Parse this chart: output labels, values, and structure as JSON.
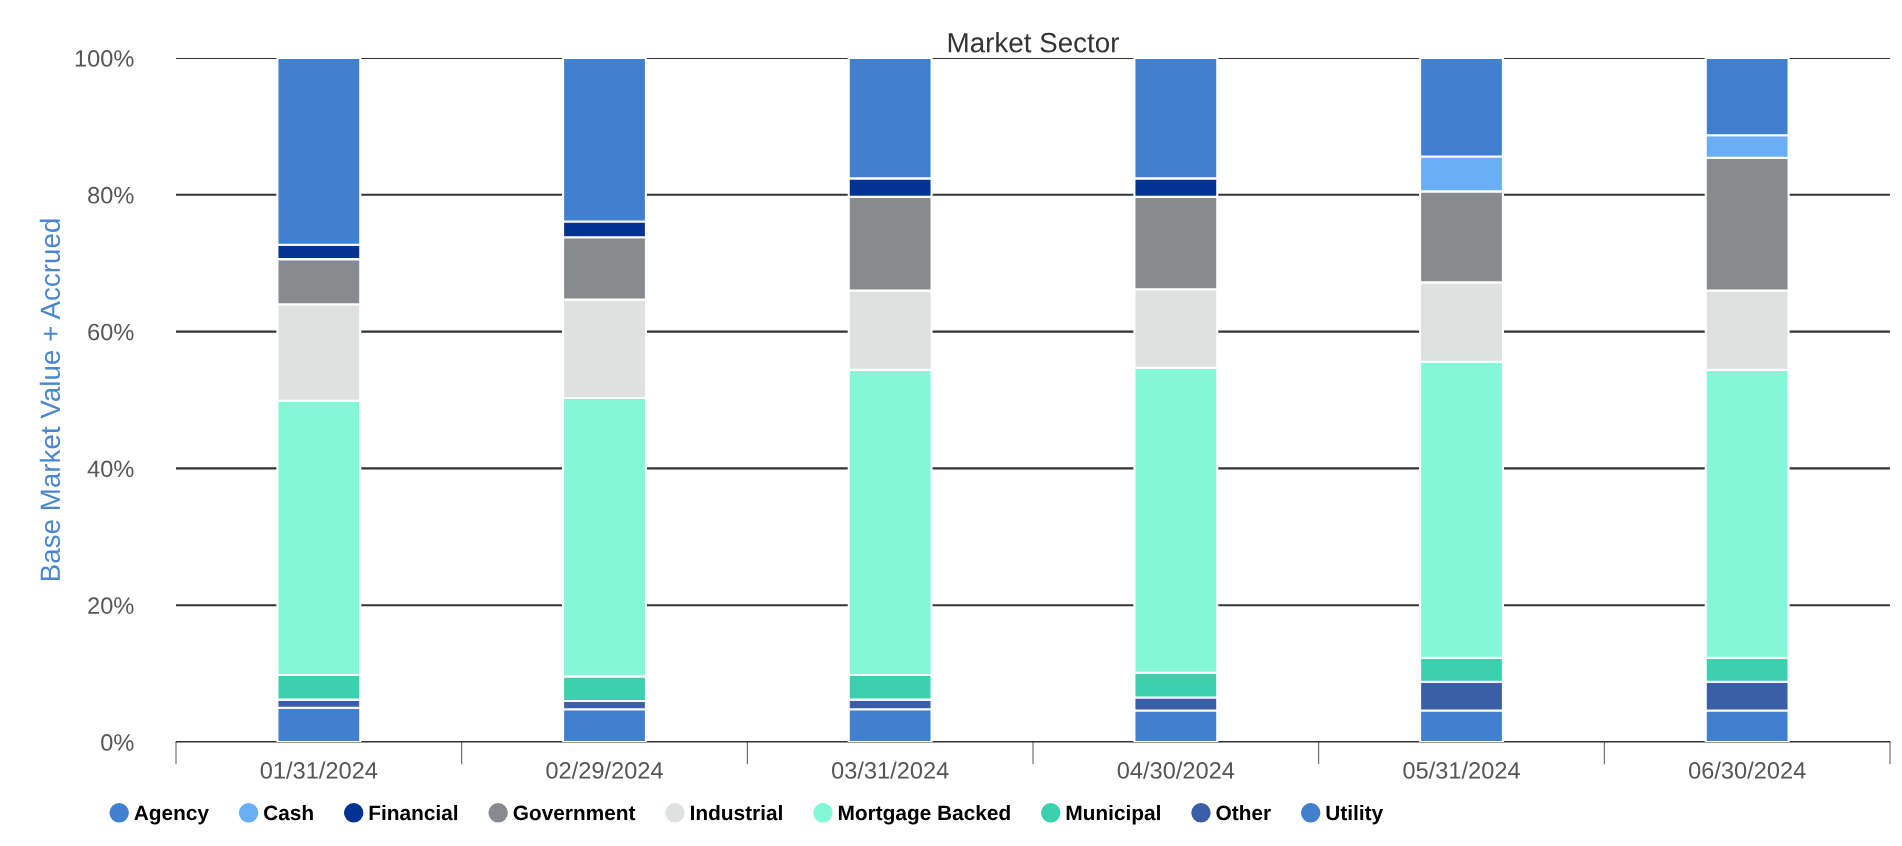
{
  "chart_data": {
    "type": "bar",
    "title": "Market Sector",
    "ylabel": "Base Market Value + Accrued",
    "stacked": true,
    "categories": [
      "01/31/2024",
      "02/29/2024",
      "03/31/2024",
      "04/30/2024",
      "05/31/2024",
      "06/30/2024"
    ],
    "series": [
      {
        "name": "Utility",
        "color": "#4080cf",
        "values": [
          5.0,
          4.8,
          4.8,
          4.6,
          4.6,
          4.6
        ]
      },
      {
        "name": "Other",
        "color": "#3a5ea8",
        "values": [
          1.2,
          1.2,
          1.4,
          1.9,
          4.2,
          4.2
        ]
      },
      {
        "name": "Municipal",
        "color": "#3bd1ae",
        "values": [
          3.6,
          3.6,
          3.6,
          3.6,
          3.5,
          3.5
        ]
      },
      {
        "name": "Mortgage Backed",
        "color": "#82f8d9",
        "values": [
          40.1,
          40.7,
          44.6,
          44.6,
          43.3,
          42.1
        ]
      },
      {
        "name": "Industrial",
        "color": "#dfe1e0",
        "values": [
          14.1,
          14.4,
          11.6,
          11.5,
          11.6,
          11.6
        ]
      },
      {
        "name": "Government",
        "color": "#878b8e",
        "values": [
          6.6,
          9.1,
          13.7,
          13.5,
          13.3,
          19.4
        ]
      },
      {
        "name": "Financial",
        "color": "#003393",
        "values": [
          2.1,
          2.3,
          2.7,
          2.7,
          null,
          null
        ]
      },
      {
        "name": "Cash",
        "color": "#6aaef5",
        "values": [
          null,
          null,
          null,
          null,
          5.1,
          3.3
        ]
      },
      {
        "name": "Agency",
        "color": "#4080cf",
        "values": [
          27.3,
          23.9,
          17.6,
          17.6,
          14.4,
          11.3
        ]
      }
    ],
    "ylim": [
      0,
      100
    ],
    "yticks": [
      {
        "value": 0,
        "label": "0%"
      },
      {
        "value": 20,
        "label": "20%"
      },
      {
        "value": 40,
        "label": "40%"
      },
      {
        "value": 60,
        "label": "60%"
      },
      {
        "value": 80,
        "label": "80%"
      },
      {
        "value": 100,
        "label": "100%"
      }
    ],
    "grid": "y",
    "legend": "bottom",
    "marker": "circle"
  }
}
